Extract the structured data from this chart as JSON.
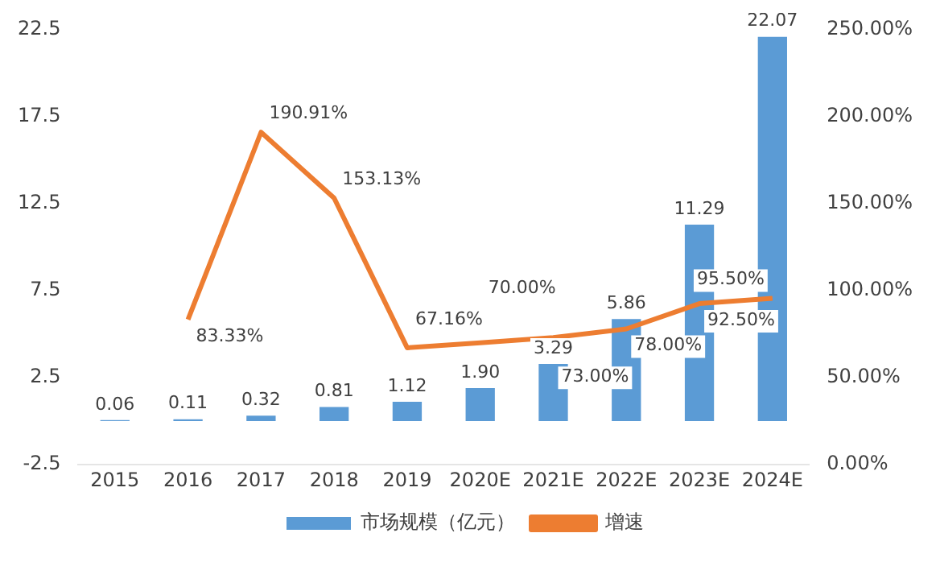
{
  "chart_data": {
    "type": "bar",
    "categories": [
      "2015",
      "2016",
      "2017",
      "2018",
      "2019",
      "2020E",
      "2021E",
      "2022E",
      "2023E",
      "2024E"
    ],
    "series": [
      {
        "name": "市场规模（亿元）",
        "type": "bar",
        "color": "#5b9bd5",
        "values": [
          0.06,
          0.11,
          0.32,
          0.81,
          1.12,
          1.9,
          3.29,
          5.86,
          11.29,
          22.07
        ],
        "value_labels": [
          "0.06",
          "0.11",
          "0.32",
          "0.81",
          "1.12",
          "1.90",
          "3.29",
          "5.86",
          "11.29",
          "22.07"
        ]
      },
      {
        "name": "增速",
        "type": "line",
        "axis": "y2",
        "color": "#ed7d31",
        "values": [
          null,
          83.33,
          190.91,
          153.13,
          67.16,
          70.0,
          73.0,
          78.0,
          92.5,
          95.5
        ],
        "value_labels": [
          null,
          "83.33%",
          "190.91%",
          "153.13%",
          "67.16%",
          "70.00%",
          "73.00%",
          "78.00%",
          "92.50%",
          "95.50%"
        ]
      }
    ],
    "ylim": [
      -2.5,
      22.5
    ],
    "yticks": [
      -2.5,
      2.5,
      7.5,
      12.5,
      17.5,
      22.5
    ],
    "y2lim": [
      0,
      250
    ],
    "y2ticks": [
      {
        "value": 0,
        "label": "0.00%"
      },
      {
        "value": 50,
        "label": "50.00%"
      },
      {
        "value": 100,
        "label": "100.00%"
      },
      {
        "value": 150,
        "label": "150.00%"
      },
      {
        "value": 200,
        "label": "200.00%"
      },
      {
        "value": 250,
        "label": "250.00%"
      }
    ],
    "grid": false,
    "legend": "bottom",
    "marker": "none",
    "line_style": "solid"
  }
}
